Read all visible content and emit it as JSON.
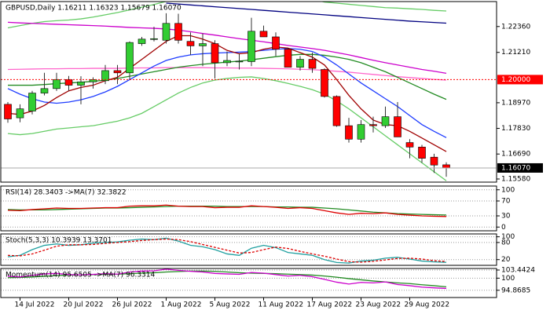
{
  "chart_data": [
    {
      "type": "candlestick",
      "title": "GBPUSD,Daily  1.16211 1.16323 1.15679 1.16070",
      "categories": [
        null,
        "14 Jul 2022",
        null,
        null,
        null,
        "20 Jul 2022",
        null,
        null,
        null,
        "26 Jul 2022",
        null,
        null,
        null,
        "1 Aug 2022",
        null,
        null,
        null,
        "5 Aug 2022",
        null,
        null,
        null,
        "11 Aug 2022",
        null,
        null,
        null,
        "17 Aug 2022",
        null,
        null,
        null,
        "23 Aug 2022",
        null,
        null,
        null,
        "29 Aug 2022",
        null,
        null,
        null
      ],
      "open": [
        1.189,
        1.183,
        1.186,
        1.194,
        1.196,
        1.2,
        1.1975,
        1.199,
        1.1995,
        1.204,
        1.203,
        1.216,
        1.218,
        1.2175,
        1.225,
        1.217,
        1.215,
        1.216,
        1.2075,
        1.208,
        1.208,
        1.2215,
        1.219,
        1.2135,
        1.2055,
        1.209,
        1.2045,
        1.1925,
        1.1795,
        1.1735,
        1.18,
        1.1795,
        1.1835,
        1.172,
        1.17,
        1.1655,
        1.16211
      ],
      "high": [
        1.19,
        1.189,
        1.195,
        1.203,
        1.203,
        1.2016,
        1.2015,
        1.201,
        1.2065,
        1.2065,
        1.217,
        1.219,
        1.2235,
        1.2295,
        1.2293,
        1.221,
        1.2205,
        1.2175,
        1.2125,
        1.2115,
        1.2275,
        1.224,
        1.221,
        1.214,
        1.2105,
        1.212,
        1.205,
        1.193,
        1.183,
        1.182,
        1.1835,
        1.188,
        1.19,
        1.1735,
        1.171,
        1.167,
        1.16323
      ],
      "low": [
        1.1808,
        1.181,
        1.1845,
        1.193,
        1.195,
        1.195,
        1.189,
        1.196,
        1.198,
        1.198,
        1.2,
        1.215,
        1.217,
        1.216,
        1.216,
        1.211,
        1.206,
        1.2005,
        1.206,
        1.2045,
        1.206,
        1.219,
        1.2105,
        1.2055,
        1.204,
        1.203,
        1.192,
        1.179,
        1.172,
        1.172,
        1.1765,
        1.1785,
        1.1745,
        1.165,
        1.163,
        1.1585,
        1.15679
      ],
      "close": [
        1.1825,
        1.187,
        1.194,
        1.196,
        1.2,
        1.1975,
        1.199,
        1.2,
        1.204,
        1.203,
        1.2165,
        1.218,
        1.2182,
        1.225,
        1.2175,
        1.215,
        1.216,
        1.2075,
        1.2085,
        1.2082,
        1.2215,
        1.219,
        1.2135,
        1.2055,
        1.209,
        1.205,
        1.1925,
        1.1795,
        1.1735,
        1.18,
        1.1795,
        1.1835,
        1.1745,
        1.17,
        1.165,
        1.162,
        1.1607
      ],
      "up_color": "#32cd32",
      "down_color": "#ff0000",
      "lines": [
        {
          "color": "#ff66cc",
          "values": [
            1.2045,
            1.2046,
            1.2047,
            1.2048,
            1.2048,
            1.2049,
            1.2049,
            1.205,
            1.205,
            1.205,
            1.2051,
            1.2052,
            1.2052,
            1.2053,
            1.2053,
            1.2053,
            1.2053,
            1.2052,
            1.2052,
            1.2051,
            1.2051,
            1.205,
            1.2049,
            1.2048,
            1.2046,
            1.2044,
            1.2041,
            1.2037,
            1.2033,
            1.2028,
            1.2023,
            1.2018,
            1.2013,
            1.2009,
            1.2005,
            1.2001,
            1.1998
          ]
        },
        {
          "color": "#66cc66",
          "values": [
            1.223,
            1.224,
            1.225,
            1.2258,
            1.2262,
            1.2265,
            1.227,
            1.2278,
            1.2288,
            1.2298,
            1.231,
            1.2322,
            1.2334,
            1.2348,
            1.2358,
            1.2365,
            1.237,
            1.2372,
            1.2374,
            1.2376,
            1.2378,
            1.238,
            1.2378,
            1.2372,
            1.2365,
            1.2358,
            1.2345,
            1.234,
            1.2335,
            1.233,
            1.2325,
            1.232,
            1.2318,
            1.2315,
            1.2312,
            1.2308,
            1.2305
          ]
        },
        {
          "color": "#66cc66",
          "values": [
            1.176,
            1.1755,
            1.176,
            1.177,
            1.178,
            1.1785,
            1.179,
            1.1795,
            1.1805,
            1.1815,
            1.183,
            1.185,
            1.188,
            1.191,
            1.194,
            1.1965,
            1.1985,
            1.1998,
            1.2005,
            1.201,
            1.2012,
            1.2005,
            1.1995,
            1.1983,
            1.197,
            1.1955,
            1.1935,
            1.1905,
            1.187,
            1.183,
            1.179,
            1.175,
            1.171,
            1.167,
            1.163,
            1.159,
            1.155
          ]
        },
        {
          "color": "#cc00cc",
          "values": [
            1.2255,
            1.2252,
            1.225,
            1.2248,
            1.2246,
            1.2244,
            1.2242,
            1.224,
            1.2238,
            1.2235,
            1.2232,
            1.223,
            1.2228,
            1.2225,
            1.222,
            1.2213,
            1.2205,
            1.2198,
            1.219,
            1.2182,
            1.2175,
            1.2168,
            1.216,
            1.2152,
            1.2145,
            1.2138,
            1.213,
            1.212,
            1.211,
            1.2098,
            1.2086,
            1.2075,
            1.2065,
            1.2055,
            1.2045,
            1.2037,
            1.2028
          ]
        },
        {
          "color": "#000080",
          "values": [
            null,
            null,
            null,
            null,
            null,
            null,
            null,
            null,
            null,
            null,
            null,
            null,
            null,
            1.234,
            1.2336,
            1.2332,
            1.2328,
            1.2324,
            1.232,
            1.2316,
            1.2312,
            1.2308,
            1.2304,
            1.23,
            1.2296,
            1.2292,
            1.2288,
            1.2284,
            1.228,
            1.2276,
            1.2272,
            1.2268,
            1.2264,
            1.226,
            1.2257,
            1.2254,
            1.2251
          ]
        },
        {
          "color": "#228b22",
          "values": [
            1.1975,
            1.1975,
            1.1975,
            1.1978,
            1.1982,
            1.1985,
            1.1988,
            1.1992,
            1.1998,
            1.2005,
            1.2015,
            1.2025,
            1.2035,
            1.2045,
            1.2055,
            1.2062,
            1.2068,
            1.2073,
            1.2078,
            1.2082,
            1.2088,
            1.2095,
            1.2102,
            1.2108,
            1.2112,
            1.2112,
            1.2108,
            1.21,
            1.209,
            1.2075,
            1.2055,
            1.2035,
            1.201,
            1.1985,
            1.196,
            1.1935,
            1.1912
          ]
        },
        {
          "color": "#1e3cff",
          "values": [
            1.196,
            1.1935,
            1.1915,
            1.19,
            1.1895,
            1.19,
            1.191,
            1.1925,
            1.1945,
            1.197,
            1.2,
            1.203,
            1.206,
            1.2085,
            1.21,
            1.211,
            1.2115,
            1.2118,
            1.212,
            1.2122,
            1.2125,
            1.213,
            1.2135,
            1.2138,
            1.2135,
            1.2125,
            1.21,
            1.2065,
            1.2025,
            1.1985,
            1.195,
            1.1915,
            1.188,
            1.184,
            1.18,
            1.177,
            1.1742
          ]
        },
        {
          "color": "#a00000",
          "values": [
            1.185,
            1.1845,
            1.186,
            1.1885,
            1.192,
            1.195,
            1.1965,
            1.1975,
            1.1995,
            1.201,
            1.205,
            1.209,
            1.213,
            1.217,
            1.2195,
            1.2195,
            1.218,
            1.216,
            1.213,
            1.2115,
            1.212,
            1.2135,
            1.2145,
            1.214,
            1.212,
            1.21,
            1.2065,
            1.2,
            1.193,
            1.187,
            1.182,
            1.18,
            1.1795,
            1.177,
            1.174,
            1.171,
            1.168
          ]
        }
      ],
      "ylim": [
        1.1544,
        1.2347
      ],
      "yticks": [
        {
          "value": 1.2236,
          "label": "1.22360"
        },
        {
          "value": 1.2121,
          "label": "1.21210"
        },
        {
          "value": 1.1897,
          "label": "1.18970"
        },
        {
          "value": 1.1783,
          "label": "1.17830"
        },
        {
          "value": 1.1669,
          "label": "1.16690"
        },
        {
          "value": 1.1558,
          "label": "1.15580"
        }
      ],
      "hline": {
        "value": 1.2,
        "label": "1.20000",
        "color": "#ff0000"
      },
      "current": {
        "value": 1.1607,
        "label": "1.16070"
      }
    },
    {
      "type": "line",
      "title": "RSI(14) 28.3403 ->MA(7) 32.3822",
      "series": [
        {
          "color": "#228b22",
          "values": [
            47,
            46,
            46,
            46,
            47,
            48,
            49,
            50,
            51,
            51,
            52,
            53,
            54,
            55,
            56,
            56,
            56,
            56,
            55,
            55,
            55,
            55,
            54,
            54,
            53,
            53,
            51,
            49,
            46,
            43,
            40,
            38,
            36,
            35,
            34,
            33,
            32.3822
          ]
        },
        {
          "color": "#dd0000",
          "values": [
            45,
            44,
            47,
            49,
            51,
            50,
            50,
            51,
            52,
            52,
            56,
            57,
            57,
            59,
            56,
            55,
            55,
            52,
            53,
            53,
            57,
            55,
            53,
            50,
            52,
            50,
            44,
            38,
            34,
            37,
            36,
            38,
            34,
            32,
            30,
            29,
            28.3403
          ]
        }
      ],
      "ylim": [
        -10,
        110
      ],
      "yticks": [
        100,
        70,
        30,
        0
      ],
      "grid": true
    },
    {
      "type": "line",
      "title": "Stoch(5,3,3) 10.3939 13.3701",
      "series": [
        {
          "color": "#20a0a0",
          "values": [
            30,
            35,
            55,
            70,
            75,
            70,
            72,
            78,
            80,
            82,
            88,
            92,
            90,
            95,
            85,
            70,
            65,
            55,
            40,
            35,
            60,
            70,
            62,
            45,
            40,
            35,
            20,
            10,
            8,
            15,
            18,
            25,
            28,
            22,
            15,
            12,
            10.3939
          ]
        },
        {
          "color": "#dd0000",
          "style": "dashed",
          "values": [
            35,
            33,
            40,
            53,
            67,
            72,
            72,
            73,
            77,
            80,
            83,
            87,
            90,
            92,
            90,
            83,
            73,
            63,
            53,
            43,
            45,
            55,
            64,
            59,
            49,
            40,
            32,
            22,
            13,
            11,
            14,
            19,
            24,
            25,
            22,
            16,
            13.3701
          ]
        }
      ],
      "ylim": [
        0,
        110
      ],
      "yticks": [
        100,
        80,
        20
      ],
      "grid": true
    },
    {
      "type": "line",
      "title": "Momentum(14) 95.6505 ->MA(7) 96.3314",
      "series": [
        {
          "color": "#228b22",
          "values": [
            100.2,
            100.3,
            100.5,
            100.8,
            101.1,
            101.3,
            101.4,
            101.5,
            101.6,
            101.7,
            101.9,
            102.1,
            102.3,
            102.6,
            102.8,
            103.0,
            103.0,
            102.9,
            102.6,
            102.3,
            102.1,
            102.0,
            101.9,
            101.7,
            101.5,
            101.3,
            100.9,
            100.4,
            99.8,
            99.3,
            98.8,
            98.4,
            98.0,
            97.7,
            97.2,
            96.8,
            96.3314
          ]
        },
        {
          "color": "#cc00cc",
          "values": [
            100.8,
            100.5,
            101.2,
            101.8,
            102.0,
            101.5,
            101.4,
            101.6,
            101.9,
            101.7,
            102.6,
            103.0,
            103.1,
            103.8,
            103.3,
            102.9,
            102.6,
            102.0,
            101.8,
            101.6,
            102.4,
            102.1,
            101.5,
            100.9,
            101.2,
            100.6,
            99.5,
            98.3,
            97.5,
            98.2,
            98.0,
            98.4,
            97.3,
            96.8,
            96.2,
            95.9,
            95.6505
          ]
        }
      ],
      "ylim": [
        91.8,
        104.1
      ],
      "yticks": [
        103.4424,
        100,
        94.8685
      ],
      "grid": true
    }
  ]
}
